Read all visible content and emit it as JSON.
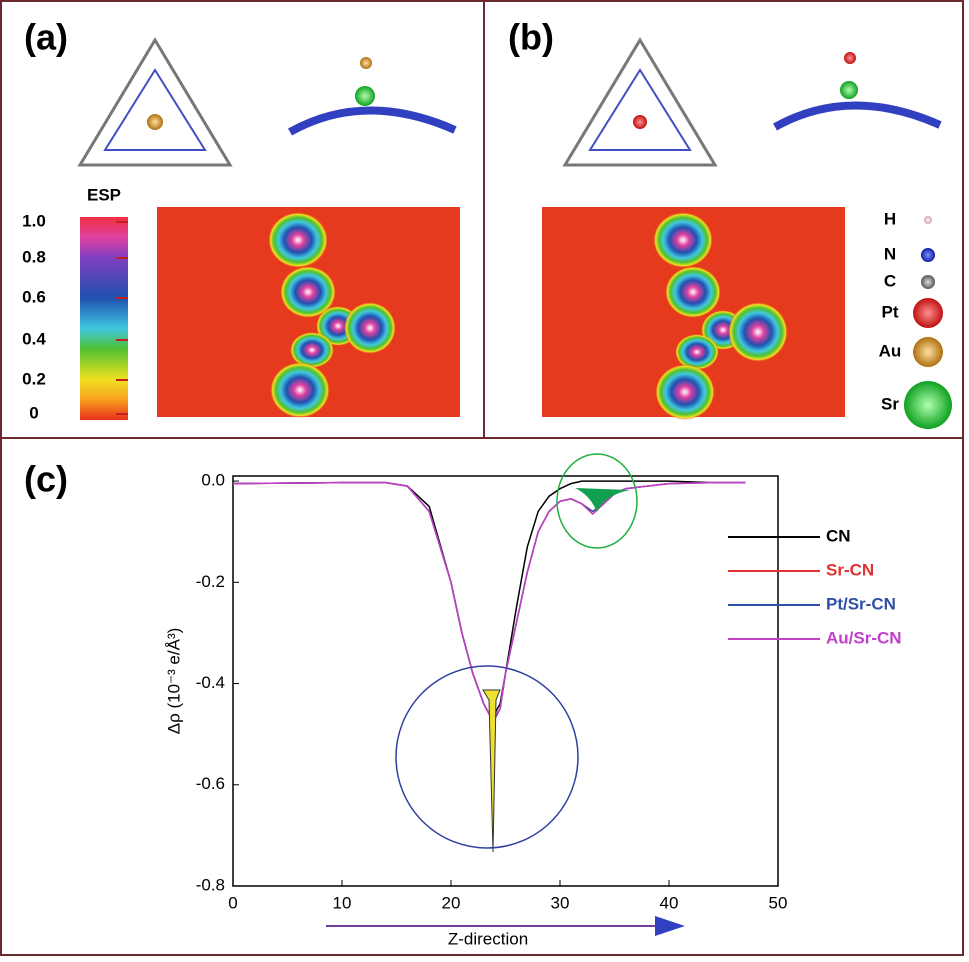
{
  "panels": {
    "a": "(a)",
    "b": "(b)",
    "c": "(c)"
  },
  "colorbar": {
    "title": "ESP",
    "ticks": [
      "1.0",
      "0.8",
      "0.6",
      "0.4",
      "0.2",
      "0"
    ]
  },
  "atoms": [
    "H",
    "N",
    "C",
    "Pt",
    "Au",
    "Sr"
  ],
  "chart_data": {
    "type": "line",
    "ylabel": "Δρ (10⁻³ e/Å³)",
    "xlabel": "Z-direction",
    "xlim": [
      0,
      50
    ],
    "ylim": [
      -0.8,
      0.01
    ],
    "xticks": [
      0,
      10,
      20,
      30,
      40,
      50
    ],
    "yticks": [
      {
        "value": 0,
        "label": "0.0"
      },
      -0.2,
      -0.4,
      -0.6,
      -0.8
    ],
    "legend": "right",
    "x": [
      0,
      5,
      10,
      14,
      16,
      18,
      20,
      21,
      22,
      23,
      23.5,
      24,
      24.5,
      25,
      26,
      27,
      28,
      29,
      30,
      31,
      32,
      33,
      34,
      35,
      36,
      38,
      40,
      44,
      47
    ],
    "series": [
      {
        "name": "CN",
        "color": "#000000",
        "values": [
          -0.005,
          -0.004,
          -0.003,
          -0.003,
          -0.01,
          -0.05,
          -0.2,
          -0.3,
          -0.38,
          -0.44,
          -0.46,
          -0.46,
          -0.44,
          -0.38,
          -0.25,
          -0.13,
          -0.06,
          -0.03,
          -0.015,
          -0.005,
          0,
          0,
          0,
          0,
          0,
          0,
          0,
          -0.003,
          -0.003
        ]
      },
      {
        "name": "Sr-CN",
        "color": "#e03232",
        "values": [
          -0.005,
          -0.004,
          -0.003,
          -0.003,
          -0.01,
          -0.06,
          -0.2,
          -0.3,
          -0.38,
          -0.44,
          -0.46,
          -0.47,
          -0.45,
          -0.38,
          -0.28,
          -0.18,
          -0.1,
          -0.06,
          -0.04,
          -0.035,
          -0.045,
          -0.065,
          -0.045,
          -0.025,
          -0.015,
          -0.01,
          -0.005,
          -0.003,
          -0.003
        ]
      },
      {
        "name": "Pt/Sr-CN",
        "color": "#3050a8",
        "values": [
          -0.005,
          -0.004,
          -0.003,
          -0.003,
          -0.01,
          -0.06,
          -0.2,
          -0.3,
          -0.38,
          -0.44,
          -0.46,
          -0.47,
          -0.45,
          -0.38,
          -0.28,
          -0.18,
          -0.1,
          -0.06,
          -0.04,
          -0.035,
          -0.045,
          -0.06,
          -0.045,
          -0.025,
          -0.015,
          -0.01,
          -0.005,
          -0.003,
          -0.003
        ]
      },
      {
        "name": "Au/Sr-CN",
        "color": "#c040c8",
        "values": [
          -0.005,
          -0.004,
          -0.003,
          -0.003,
          -0.01,
          -0.06,
          -0.2,
          -0.3,
          -0.38,
          -0.44,
          -0.46,
          -0.465,
          -0.45,
          -0.38,
          -0.28,
          -0.18,
          -0.1,
          -0.06,
          -0.04,
          -0.035,
          -0.045,
          -0.065,
          -0.045,
          -0.025,
          -0.015,
          -0.01,
          -0.005,
          -0.003,
          -0.003
        ]
      }
    ]
  }
}
